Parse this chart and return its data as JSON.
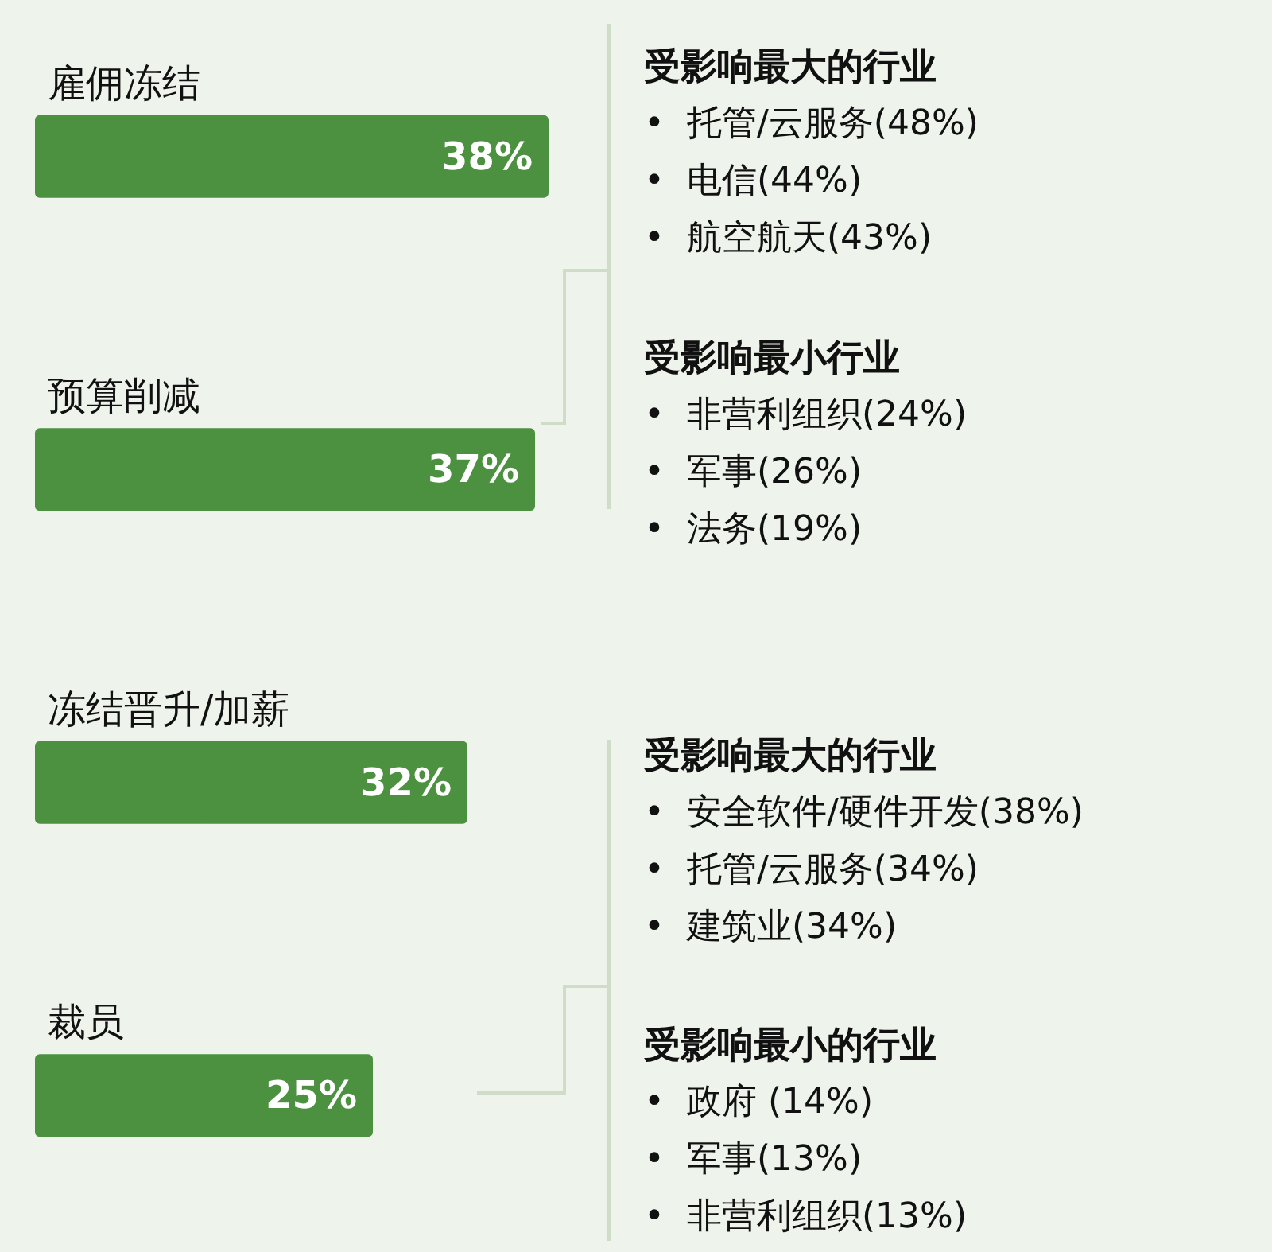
{
  "chart_data": {
    "type": "bar",
    "orientation": "horizontal",
    "categories": [
      "雇佣冻结",
      "预算削减",
      "冻结晋升/加薪",
      "裁员"
    ],
    "values": [
      38,
      37,
      32,
      25
    ],
    "color": "#4c9140",
    "value_labels": [
      "38%",
      "37%",
      "32%",
      "25%"
    ],
    "annotations": [
      "受影响最大的行业",
      "•  托管/云服务(48%)",
      "•  电信(44%)",
      "•  航空航天(43%)",
      "受影响最小行业",
      "•  非营利组织(24%)",
      "•  军事(26%)",
      "•  法务(19%)",
      "受影响最大的行业",
      "•  安全软件/硬件开发(38%)",
      "•  托管/云服务(34%)",
      "•  建筑业(34%)",
      "受影响最小的行业",
      "•  政府 (14%)",
      "•  军事(13%)",
      "•  非营利组织(13%)"
    ]
  }
}
